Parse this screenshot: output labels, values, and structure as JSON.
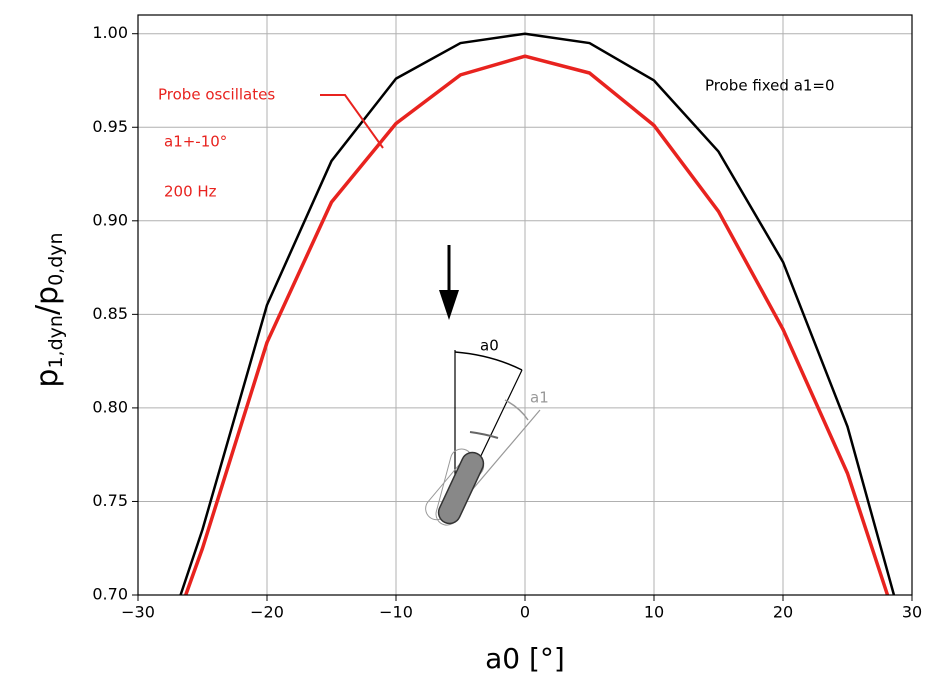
{
  "chart_data": {
    "type": "line",
    "xlabel": "a0 [°]",
    "ylabel_parts": [
      "p",
      "1,dyn",
      "/p",
      "0,dyn"
    ],
    "xlim": [
      -30,
      30
    ],
    "ylim": [
      0.7,
      1.01
    ],
    "xticks": [
      {
        "value": -30,
        "label": "−30"
      },
      {
        "value": -20,
        "label": "−20"
      },
      {
        "value": -10,
        "label": "−10"
      },
      0,
      10,
      20,
      30
    ],
    "yticks": [
      {
        "value": 0.7,
        "label": "0.70"
      },
      {
        "value": 0.75,
        "label": "0.75"
      },
      {
        "value": 0.8,
        "label": "0.80"
      },
      {
        "value": 0.85,
        "label": "0.85"
      },
      {
        "value": 0.9,
        "label": "0.90"
      },
      {
        "value": 0.95,
        "label": "0.95"
      },
      {
        "value": 1.0,
        "label": "1.00"
      }
    ],
    "grid": true,
    "series": [
      {
        "name": "Probe fixed a1=0",
        "color": "#000000",
        "x": [
          -26.7,
          -25,
          -20,
          -15,
          -10,
          -5,
          0,
          5,
          10,
          15,
          20,
          25,
          28.6
        ],
        "values": [
          0.7,
          0.735,
          0.855,
          0.932,
          0.976,
          0.995,
          1.0,
          0.995,
          0.975,
          0.937,
          0.878,
          0.79,
          0.7
        ]
      },
      {
        "name": "Probe oscillates",
        "color": "#e8231f",
        "x": [
          -26.3,
          -25,
          -20,
          -15,
          -10,
          -5,
          0,
          5,
          10,
          15,
          20,
          25,
          28.1
        ],
        "values": [
          0.7,
          0.725,
          0.835,
          0.91,
          0.952,
          0.978,
          0.988,
          0.979,
          0.951,
          0.905,
          0.842,
          0.765,
          0.7
        ]
      }
    ],
    "annotations": [
      "a1+-10°",
      "200 Hz"
    ],
    "inset_labels": [
      "a0",
      "a1"
    ]
  }
}
